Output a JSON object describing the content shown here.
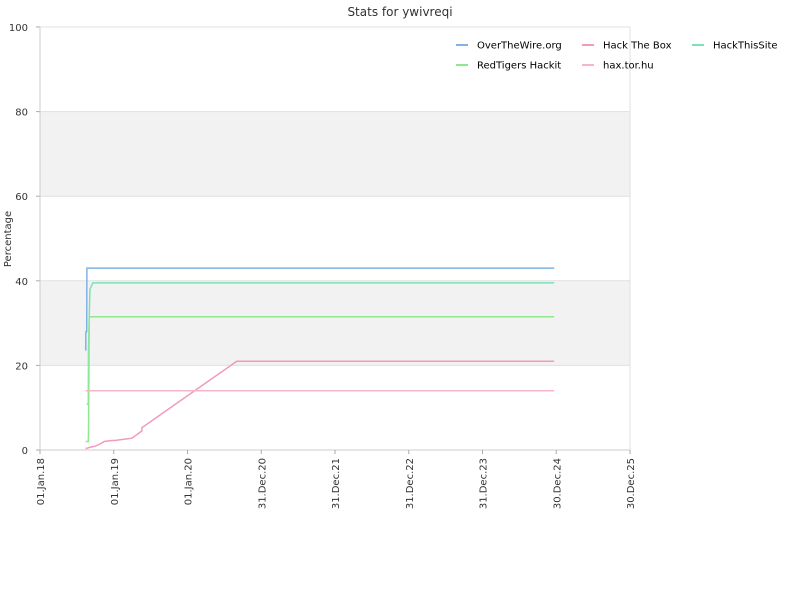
{
  "chart_data": {
    "type": "line",
    "title": "Stats for ywivreqi",
    "xlabel": "",
    "ylabel": "Percentage",
    "ylim": [
      0,
      100
    ],
    "y_ticks": [
      "0",
      "20",
      "40",
      "60",
      "80",
      "100"
    ],
    "xlim": [
      "2018-01-01",
      "2025-12-30"
    ],
    "x_ticks": [
      {
        "date": "2018-01-01",
        "label": "01.Jan.18"
      },
      {
        "date": "2019-01-01",
        "label": "01.Jan.19"
      },
      {
        "date": "2020-01-01",
        "label": "01.Jan.20"
      },
      {
        "date": "2020-12-31",
        "label": "31.Dec.20"
      },
      {
        "date": "2021-12-31",
        "label": "31.Dec.21"
      },
      {
        "date": "2022-12-31",
        "label": "31.Dec.22"
      },
      {
        "date": "2023-12-31",
        "label": "31.Dec.23"
      },
      {
        "date": "2024-12-30",
        "label": "30.Dec.24"
      },
      {
        "date": "2025-12-30",
        "label": "30.Dec.25"
      }
    ],
    "grid": true,
    "legend_position": "top-right",
    "series": [
      {
        "name": "OverTheWire.org",
        "color": "#7fb2e5",
        "points": [
          [
            "2018-08-15",
            23.5
          ],
          [
            "2018-08-16",
            28.0
          ],
          [
            "2018-08-20",
            28.0
          ],
          [
            "2018-08-21",
            43.0
          ],
          [
            "2024-12-20",
            43.0
          ]
        ]
      },
      {
        "name": "Hack The Box",
        "color": "#f09ac0",
        "points": [
          [
            "2018-08-15",
            0.3
          ],
          [
            "2018-09-01",
            0.6
          ],
          [
            "2018-10-01",
            0.9
          ],
          [
            "2018-10-20",
            1.3
          ],
          [
            "2018-11-15",
            2.0
          ],
          [
            "2018-12-10",
            2.2
          ],
          [
            "2019-01-15",
            2.3
          ],
          [
            "2019-03-01",
            2.6
          ],
          [
            "2019-04-01",
            2.8
          ],
          [
            "2019-05-20",
            4.5
          ],
          [
            "2019-05-21",
            5.3
          ],
          [
            "2020-09-01",
            21.0
          ],
          [
            "2024-12-20",
            21.0
          ]
        ]
      },
      {
        "name": "HackThisSite",
        "color": "#7ee2b8",
        "points": [
          [
            "2018-08-20",
            10.8
          ],
          [
            "2018-08-28",
            10.8
          ],
          [
            "2018-08-29",
            24.0
          ],
          [
            "2018-09-05",
            38.0
          ],
          [
            "2018-09-20",
            39.5
          ],
          [
            "2024-12-20",
            39.5
          ]
        ]
      },
      {
        "name": "RedTigers Hackit",
        "color": "#8fe88f",
        "points": [
          [
            "2018-08-15",
            2.0
          ],
          [
            "2018-08-28",
            2.0
          ],
          [
            "2018-08-29",
            4.0
          ],
          [
            "2018-09-02",
            31.5
          ],
          [
            "2024-12-20",
            31.5
          ]
        ]
      },
      {
        "name": "hax.tor.hu",
        "color": "#f4b6c8",
        "points": [
          [
            "2018-08-15",
            14.0
          ],
          [
            "2024-12-20",
            14.0
          ]
        ]
      }
    ]
  }
}
